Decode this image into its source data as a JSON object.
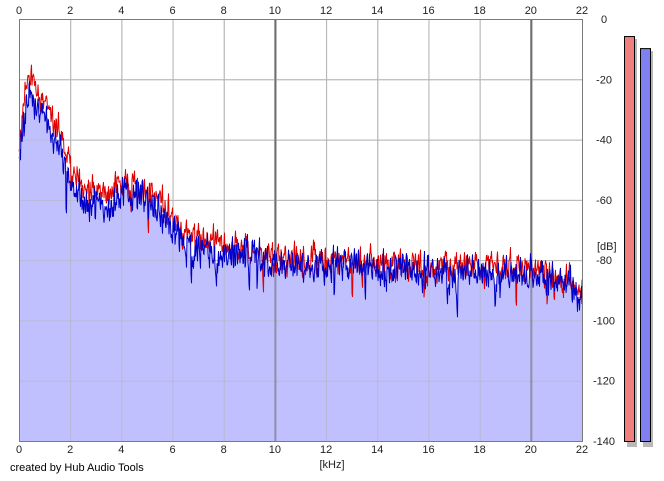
{
  "credit": "created by Hub Audio Tools",
  "chart_data": {
    "type": "area",
    "xlabel": "[kHz]",
    "ylabel": "[dB]",
    "xlim": [
      0,
      22
    ],
    "ylim": [
      -140,
      0
    ],
    "x_ticks": [
      0,
      2,
      4,
      6,
      8,
      10,
      12,
      14,
      16,
      18,
      20,
      22
    ],
    "y_ticks": [
      0,
      -20,
      -40,
      -60,
      -80,
      -100,
      -120,
      -140
    ],
    "grid": true,
    "colors": {
      "red": "#e00000",
      "blue": "#0000c8",
      "fill": "#c0c0ff",
      "grid": "#b4b4b4",
      "major_grid": "#6e6e6e"
    },
    "series": [
      {
        "color": "red",
        "x": [
          0,
          0.25,
          0.5,
          0.75,
          1,
          1.5,
          2,
          2.5,
          3,
          3.5,
          4,
          4.5,
          5,
          5.5,
          6,
          6.5,
          7,
          7.5,
          8,
          8.5,
          9,
          9.5,
          10,
          11,
          12,
          13,
          14,
          15,
          16,
          17,
          18,
          19,
          20,
          20.5,
          21,
          21.5,
          22
        ],
        "values": [
          -45,
          -22,
          -20,
          -25,
          -28,
          -36,
          -48,
          -56,
          -58,
          -57,
          -55,
          -54,
          -56,
          -60,
          -66,
          -71,
          -73,
          -74,
          -75,
          -76,
          -76,
          -77,
          -78,
          -80,
          -80,
          -80,
          -81,
          -81,
          -82,
          -82,
          -82,
          -82,
          -82,
          -84,
          -85,
          -87,
          -89
        ]
      },
      {
        "color": "blue",
        "x": [
          0,
          0.25,
          0.5,
          0.75,
          1,
          1.5,
          2,
          2.5,
          3,
          3.5,
          4,
          4.5,
          5,
          5.5,
          6,
          6.5,
          7,
          7.5,
          8,
          8.5,
          9,
          9.5,
          10,
          11,
          12,
          13,
          14,
          15,
          16,
          17,
          18,
          19,
          20,
          20.5,
          21,
          21.5,
          22
        ],
        "values": [
          -48,
          -26,
          -24,
          -30,
          -34,
          -42,
          -53,
          -60,
          -62,
          -61,
          -59,
          -58,
          -60,
          -64,
          -70,
          -75,
          -77,
          -78,
          -78,
          -79,
          -79,
          -80,
          -81,
          -82,
          -82,
          -82,
          -83,
          -83,
          -84,
          -84,
          -84,
          -84,
          -85,
          -86,
          -87,
          -89,
          -91
        ]
      }
    ],
    "level_meters": [
      {
        "color": "red",
        "peak_db": -3
      },
      {
        "color": "blue",
        "peak_db": -7
      }
    ]
  }
}
